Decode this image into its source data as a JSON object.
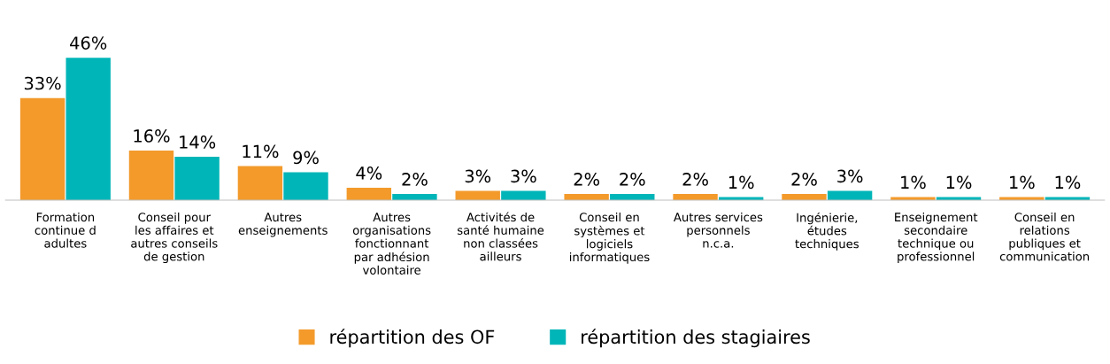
{
  "chart_data": {
    "type": "bar",
    "categories": [
      "Formation continue d adultes",
      "Conseil pour les affaires et autres conseils de gestion",
      "Autres enseignements",
      "Autres organisations fonctionnant par adhésion volontaire",
      "Activités de santé humaine non classées ailleurs",
      "Conseil en systèmes et logiciels informatiques",
      "Autres services personnels n.c.a.",
      "Ingénierie, études techniques",
      "Enseignement secondaire technique ou professionnel",
      "Conseil en relations publiques et communication"
    ],
    "series": [
      {
        "name": "répartition des OF",
        "color": "#f39a2b",
        "values": [
          33,
          16,
          11,
          4,
          3,
          2,
          2,
          2,
          1,
          1
        ],
        "value_labels": [
          "33%",
          "16%",
          "11%",
          "4%",
          "3%",
          "2%",
          "2%",
          "2%",
          "1%",
          "1%"
        ]
      },
      {
        "name": "répartition des stagiaires",
        "color": "#00b5b8",
        "values": [
          46,
          14,
          9,
          2,
          3,
          2,
          1,
          3,
          1,
          1
        ],
        "value_labels": [
          "46%",
          "14%",
          "9%",
          "2%",
          "3%",
          "2%",
          "1%",
          "3%",
          "1%",
          "1%"
        ]
      }
    ],
    "legend": "bottom",
    "grid": false
  }
}
